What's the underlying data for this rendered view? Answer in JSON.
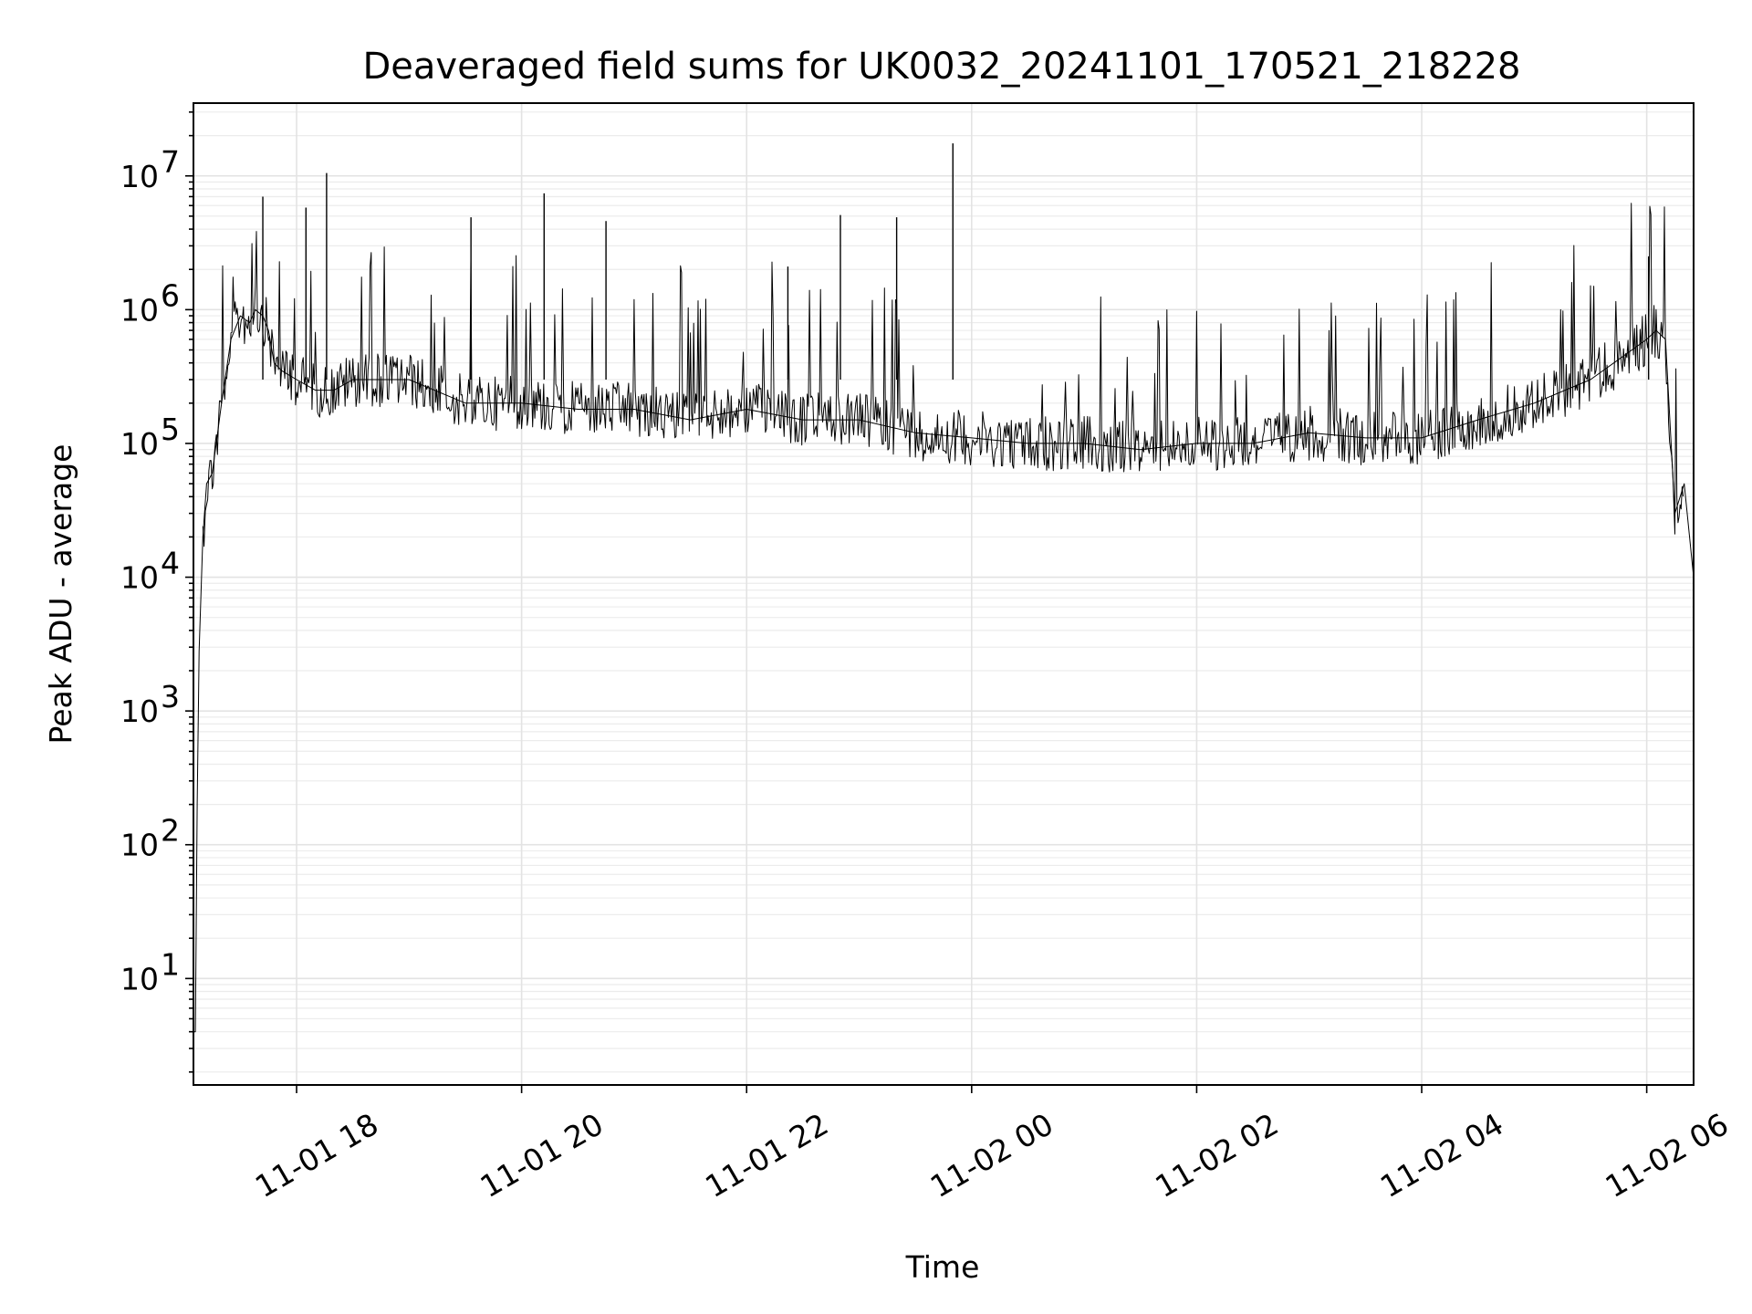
{
  "chart_data": {
    "type": "line",
    "title": "Deaveraged field sums for UK0032_20241101_170521_218228",
    "xlabel": "Time",
    "ylabel": "Peak ADU - average",
    "yscale": "log",
    "grid": true,
    "x_tick_labels": [
      "11-01 18",
      "11-01 20",
      "11-01 22",
      "11-02 00",
      "11-02 02",
      "11-02 04",
      "11-02 06"
    ],
    "x_tick_values": [
      "2024-11-01 18:00",
      "2024-11-01 20:00",
      "2024-11-01 22:00",
      "2024-11-02 00:00",
      "2024-11-02 02:00",
      "2024-11-02 04:00",
      "2024-11-02 06:00"
    ],
    "xlim": [
      "2024-11-01 17:05",
      "2024-11-02 06:25"
    ],
    "y_ticks": [
      10,
      100,
      1000,
      10000,
      100000,
      1000000,
      10000000
    ],
    "y_tick_labels": [
      {
        "base": "10",
        "exp": "1"
      },
      {
        "base": "10",
        "exp": "2"
      },
      {
        "base": "10",
        "exp": "3"
      },
      {
        "base": "10",
        "exp": "4"
      },
      {
        "base": "10",
        "exp": "5"
      },
      {
        "base": "10",
        "exp": "6"
      },
      {
        "base": "10",
        "exp": "7"
      }
    ],
    "ylim": [
      1.6,
      35000000
    ],
    "line_color": "#000000",
    "series": [
      {
        "x": [
          "2024-11-01 17:05",
          "2024-11-01 17:06",
          "2024-11-01 17:07",
          "2024-11-01 17:08",
          "2024-11-01 17:10",
          "2024-11-01 17:12",
          "2024-11-01 17:15",
          "2024-11-01 17:20",
          "2024-11-01 17:25",
          "2024-11-01 17:30",
          "2024-11-01 17:35",
          "2024-11-01 17:38",
          "2024-11-01 17:42",
          "2024-11-01 17:45",
          "2024-11-01 17:48",
          "2024-11-01 17:52",
          "2024-11-01 18:00",
          "2024-11-01 18:10",
          "2024-11-01 18:20",
          "2024-11-01 18:30",
          "2024-11-01 18:45",
          "2024-11-01 19:00",
          "2024-11-01 19:30",
          "2024-11-01 20:00",
          "2024-11-01 20:30",
          "2024-11-01 21:00",
          "2024-11-01 21:30",
          "2024-11-01 22:00",
          "2024-11-01 22:30",
          "2024-11-01 23:00",
          "2024-11-01 23:30",
          "2024-11-02 00:00",
          "2024-11-02 00:30",
          "2024-11-02 01:00",
          "2024-11-02 01:30",
          "2024-11-02 02:00",
          "2024-11-02 02:30",
          "2024-11-02 03:00",
          "2024-11-02 03:30",
          "2024-11-02 04:00",
          "2024-11-02 04:30",
          "2024-11-02 05:00",
          "2024-11-02 05:30",
          "2024-11-02 06:00",
          "2024-11-02 06:05",
          "2024-11-02 06:10",
          "2024-11-02 06:15",
          "2024-11-02 06:20",
          "2024-11-02 06:25"
        ],
        "y": [
          4,
          4,
          200,
          2800,
          20000,
          50000,
          60000,
          200000,
          600000,
          900000,
          800000,
          1000000,
          900000,
          700000,
          400000,
          350000,
          300000,
          250000,
          250000,
          300000,
          300000,
          300000,
          200000,
          200000,
          180000,
          180000,
          150000,
          180000,
          150000,
          150000,
          120000,
          110000,
          100000,
          100000,
          90000,
          100000,
          100000,
          120000,
          110000,
          110000,
          150000,
          200000,
          300000,
          600000,
          700000,
          600000,
          30000,
          50000,
          10000
        ],
        "spikes": [
          {
            "x": "2024-11-01 17:42",
            "y": 7000000
          },
          {
            "x": "2024-11-01 18:05",
            "y": 5800000
          },
          {
            "x": "2024-11-01 18:16",
            "y": 10500000
          },
          {
            "x": "2024-11-01 19:33",
            "y": 4900000
          },
          {
            "x": "2024-11-01 20:12",
            "y": 7400000
          },
          {
            "x": "2024-11-01 20:45",
            "y": 4600000
          },
          {
            "x": "2024-11-01 22:22",
            "y": 2100000
          },
          {
            "x": "2024-11-01 22:50",
            "y": 5100000
          },
          {
            "x": "2024-11-01 23:20",
            "y": 4900000
          },
          {
            "x": "2024-11-01 23:50",
            "y": 17500000
          },
          {
            "x": "2024-11-02 06:01",
            "y": 2500000
          }
        ]
      }
    ]
  }
}
